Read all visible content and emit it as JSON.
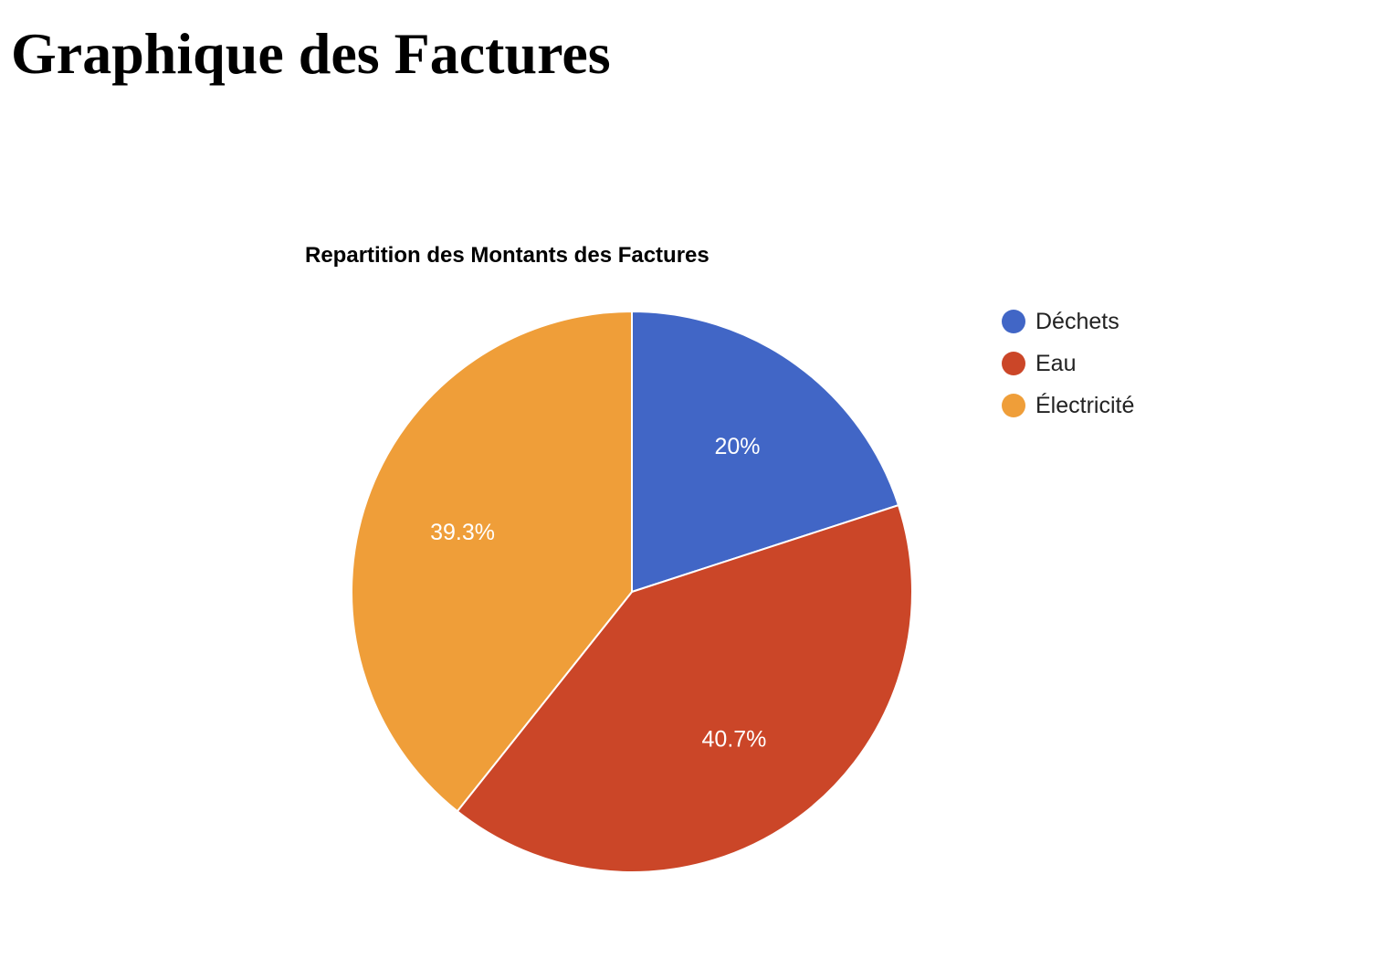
{
  "page": {
    "title": "Graphique des Factures"
  },
  "chart_data": {
    "type": "pie",
    "title": "Repartition des Montants des Factures",
    "legend_position": "right",
    "slices": [
      {
        "label": "Déchets",
        "value": 20.0,
        "display": "20%",
        "color": "#4166c6"
      },
      {
        "label": "Eau",
        "value": 40.7,
        "display": "40.7%",
        "color": "#cb4628"
      },
      {
        "label": "Électricité",
        "value": 39.3,
        "display": "39.3%",
        "color": "#ef9e39"
      }
    ]
  }
}
